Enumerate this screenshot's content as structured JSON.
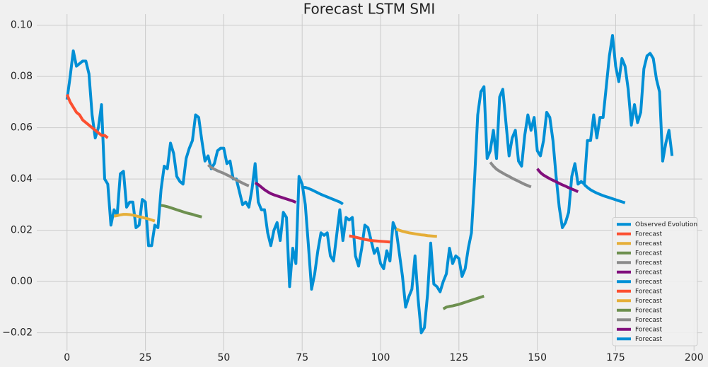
{
  "chart_data": {
    "type": "line",
    "title": "Forecast LSTM SMI",
    "xlim": [
      -9.65,
      202.65
    ],
    "xticks": [
      0,
      25,
      50,
      75,
      100,
      125,
      150,
      175,
      200
    ],
    "ylim": [
      -0.027,
      0.1043
    ],
    "yticks": [
      {
        "value": -0.02,
        "label": "−0.02"
      },
      {
        "value": 0,
        "label": "0.00"
      },
      0.02,
      0.04,
      0.06,
      0.08,
      {
        "value": 0.1,
        "label": "0.10"
      }
    ],
    "grid": true,
    "legend": "lower right",
    "series": [
      {
        "name": "Observed Evolution",
        "color": "#008fd5",
        "x": [
          0,
          1,
          2,
          3,
          4,
          5,
          6,
          7,
          8,
          9,
          10,
          11,
          12,
          13,
          14,
          15,
          16,
          17,
          18,
          19,
          20,
          21,
          22,
          23,
          24,
          25,
          26,
          27,
          28,
          29,
          30,
          31,
          32,
          33,
          34,
          35,
          36,
          37,
          38,
          39,
          40,
          41,
          42,
          43,
          44,
          45,
          46,
          47,
          48,
          49,
          50,
          51,
          52,
          53,
          54,
          55,
          56,
          57,
          58,
          59,
          60,
          61,
          62,
          63,
          64,
          65,
          66,
          67,
          68,
          69,
          70,
          71,
          72,
          73,
          74,
          75,
          76,
          77,
          78,
          79,
          80,
          81,
          82,
          83,
          84,
          85,
          86,
          87,
          88,
          89,
          90,
          91,
          92,
          93,
          94,
          95,
          96,
          97,
          98,
          99,
          100,
          101,
          102,
          103,
          104,
          105,
          106,
          107,
          108,
          109,
          110,
          111,
          112,
          113,
          114,
          115,
          116,
          117,
          118,
          119,
          120,
          121,
          122,
          123,
          124,
          125,
          126,
          127,
          128,
          129,
          130,
          131,
          132,
          133,
          134,
          135,
          136,
          137,
          138,
          139,
          140,
          141,
          142,
          143,
          144,
          145,
          146,
          147,
          148,
          149,
          150,
          151,
          152,
          153,
          154,
          155,
          156,
          157,
          158,
          159,
          160,
          161,
          162,
          163,
          164,
          165,
          166,
          167,
          168,
          169,
          170,
          171,
          172,
          173,
          174,
          175,
          176,
          177,
          178,
          179,
          180,
          181,
          182,
          183,
          184,
          185,
          186,
          187,
          188,
          189,
          190,
          191,
          192,
          193
        ],
        "values": [
          0.071,
          0.08,
          0.09,
          0.084,
          0.085,
          0.086,
          0.086,
          0.081,
          0.065,
          0.056,
          0.06,
          0.069,
          0.04,
          0.038,
          0.022,
          0.028,
          0.026,
          0.042,
          0.043,
          0.029,
          0.031,
          0.031,
          0.021,
          0.022,
          0.032,
          0.031,
          0.014,
          0.014,
          0.022,
          0.021,
          0.036,
          0.045,
          0.044,
          0.054,
          0.05,
          0.041,
          0.039,
          0.038,
          0.048,
          0.052,
          0.055,
          0.065,
          0.064,
          0.055,
          0.047,
          0.049,
          0.044,
          0.046,
          0.051,
          0.052,
          0.052,
          0.046,
          0.047,
          0.04,
          0.04,
          0.035,
          0.03,
          0.031,
          0.029,
          0.036,
          0.046,
          0.031,
          0.028,
          0.028,
          0.019,
          0.014,
          0.02,
          0.023,
          0.016,
          0.027,
          0.025,
          -0.002,
          0.013,
          0.007,
          0.041,
          0.038,
          0.03,
          0.014,
          -0.003,
          0.003,
          0.012,
          0.019,
          0.018,
          0.019,
          0.01,
          0.008,
          0.018,
          0.028,
          0.016,
          0.025,
          0.024,
          0.025,
          0.01,
          0.006,
          0.013,
          0.022,
          0.021,
          0.016,
          0.011,
          0.013,
          0.007,
          0.005,
          0.012,
          0.008,
          0.023,
          0.02,
          0.011,
          0.002,
          -0.01,
          -0.006,
          -0.003,
          0.01,
          -0.007,
          -0.02,
          -0.018,
          -0.005,
          0.015,
          -0.001,
          -0.002,
          -0.004,
          0.0,
          0.003,
          0.013,
          0.007,
          0.01,
          0.009,
          0.002,
          0.005,
          0.013,
          0.019,
          0.04,
          0.065,
          0.074,
          0.076,
          0.048,
          0.051,
          0.059,
          0.048,
          0.072,
          0.075,
          0.062,
          0.049,
          0.056,
          0.059,
          0.047,
          0.045,
          0.057,
          0.065,
          0.059,
          0.064,
          0.051,
          0.049,
          0.055,
          0.066,
          0.064,
          0.055,
          0.041,
          0.029,
          0.021,
          0.023,
          0.027,
          0.041,
          0.046,
          0.038,
          0.039,
          0.038,
          0.055,
          0.055,
          0.065,
          0.056,
          0.064,
          0.064,
          0.076,
          0.088,
          0.096,
          0.084,
          0.078,
          0.087,
          0.084,
          0.075,
          0.061,
          0.069,
          0.062,
          0.066,
          0.083,
          0.088,
          0.089,
          0.087,
          0.079,
          0.074,
          0.047,
          0.054,
          0.059,
          0.049
        ]
      },
      {
        "name": "Forecast",
        "color": "#fc4f30",
        "x": [
          0,
          1,
          2,
          3,
          4,
          5,
          6,
          7,
          8,
          9,
          10,
          11,
          12,
          13
        ],
        "values": [
          0.073,
          0.07,
          0.068,
          0.066,
          0.065,
          0.063,
          0.062,
          0.061,
          0.06,
          0.059,
          0.058,
          0.057,
          0.057,
          0.056
        ]
      },
      {
        "name": "Forecast",
        "color": "#e5ae38",
        "x": [
          15,
          16,
          17,
          18,
          19,
          20,
          21,
          22,
          23,
          24,
          25,
          26,
          27,
          28
        ],
        "values": [
          0.0255,
          0.0257,
          0.026,
          0.0262,
          0.0262,
          0.0261,
          0.0259,
          0.0256,
          0.0253,
          0.025,
          0.0247,
          0.0244,
          0.024,
          0.0236
        ]
      },
      {
        "name": "Forecast",
        "color": "#6d904f",
        "x": [
          30,
          31,
          32,
          33,
          34,
          35,
          36,
          37,
          38,
          39,
          40,
          41,
          42,
          43
        ],
        "values": [
          0.0297,
          0.0295,
          0.0292,
          0.0288,
          0.0284,
          0.028,
          0.0276,
          0.0272,
          0.0268,
          0.0265,
          0.0262,
          0.0258,
          0.0255,
          0.0252
        ]
      },
      {
        "name": "Forecast",
        "color": "#8b8b8b",
        "x": [
          45,
          46,
          47,
          48,
          49,
          50,
          51,
          52,
          53,
          54,
          55,
          56,
          57,
          58
        ],
        "values": [
          0.0455,
          0.0445,
          0.0438,
          0.0432,
          0.0427,
          0.0422,
          0.0416,
          0.041,
          0.0403,
          0.0396,
          0.039,
          0.0384,
          0.0378,
          0.0373
        ]
      },
      {
        "name": "Forecast",
        "color": "#810f7c",
        "x": [
          60,
          61,
          62,
          63,
          64,
          65,
          66,
          67,
          68,
          69,
          70,
          71,
          72,
          73
        ],
        "values": [
          0.0385,
          0.0378,
          0.0368,
          0.0358,
          0.035,
          0.0343,
          0.0338,
          0.0334,
          0.033,
          0.0326,
          0.0322,
          0.0318,
          0.0314,
          0.0309
        ]
      },
      {
        "name": "Forecast",
        "color": "#008fd5",
        "x": [
          75,
          76,
          77,
          78,
          79,
          80,
          81,
          82,
          83,
          84,
          85,
          86,
          87,
          88
        ],
        "values": [
          0.0368,
          0.0367,
          0.0363,
          0.0358,
          0.0352,
          0.0346,
          0.034,
          0.0335,
          0.033,
          0.0325,
          0.032,
          0.0315,
          0.031,
          0.0302
        ]
      },
      {
        "name": "Forecast",
        "color": "#fc4f30",
        "x": [
          90,
          91,
          92,
          93,
          94,
          95,
          96,
          97,
          98,
          99,
          100,
          101,
          102,
          103
        ],
        "values": [
          0.0178,
          0.0176,
          0.0173,
          0.017,
          0.0167,
          0.0164,
          0.0162,
          0.016,
          0.0159,
          0.0158,
          0.0157,
          0.0156,
          0.0155,
          0.0154
        ]
      },
      {
        "name": "Forecast",
        "color": "#e5ae38",
        "x": [
          105,
          106,
          107,
          108,
          109,
          110,
          111,
          112,
          113,
          114,
          115,
          116,
          117,
          118
        ],
        "values": [
          0.0205,
          0.02,
          0.0196,
          0.0193,
          0.019,
          0.0188,
          0.0186,
          0.0184,
          0.0182,
          0.0181,
          0.0179,
          0.0178,
          0.0177,
          0.0176
        ]
      },
      {
        "name": "Forecast",
        "color": "#6d904f",
        "x": [
          120,
          121,
          122,
          123,
          124,
          125,
          126,
          127,
          128,
          129,
          130,
          131,
          132,
          133
        ],
        "values": [
          -0.0107,
          -0.01,
          -0.0097,
          -0.0095,
          -0.0092,
          -0.0089,
          -0.0085,
          -0.0081,
          -0.0077,
          -0.0073,
          -0.0069,
          -0.0065,
          -0.0061,
          -0.0057
        ]
      },
      {
        "name": "Forecast",
        "color": "#8b8b8b",
        "x": [
          135,
          136,
          137,
          138,
          139,
          140,
          141,
          142,
          143,
          144,
          145,
          146,
          147,
          148
        ],
        "values": [
          0.0465,
          0.045,
          0.0438,
          0.043,
          0.0423,
          0.0416,
          0.041,
          0.0403,
          0.0397,
          0.0391,
          0.0385,
          0.0379,
          0.0374,
          0.0369
        ]
      },
      {
        "name": "Forecast",
        "color": "#810f7c",
        "x": [
          150,
          151,
          152,
          153,
          154,
          155,
          156,
          157,
          158,
          159,
          160,
          161,
          162,
          163
        ],
        "values": [
          0.044,
          0.0425,
          0.0415,
          0.0408,
          0.0401,
          0.0395,
          0.0389,
          0.0383,
          0.0377,
          0.0372,
          0.0366,
          0.0361,
          0.0356,
          0.035
        ]
      },
      {
        "name": "Forecast",
        "color": "#008fd5",
        "x": [
          165,
          166,
          167,
          168,
          169,
          170,
          171,
          172,
          173,
          174,
          175,
          176,
          177,
          178
        ],
        "values": [
          0.0378,
          0.0367,
          0.0358,
          0.0351,
          0.0345,
          0.034,
          0.0335,
          0.0331,
          0.0327,
          0.0323,
          0.0319,
          0.0315,
          0.0311,
          0.0307
        ]
      }
    ]
  }
}
